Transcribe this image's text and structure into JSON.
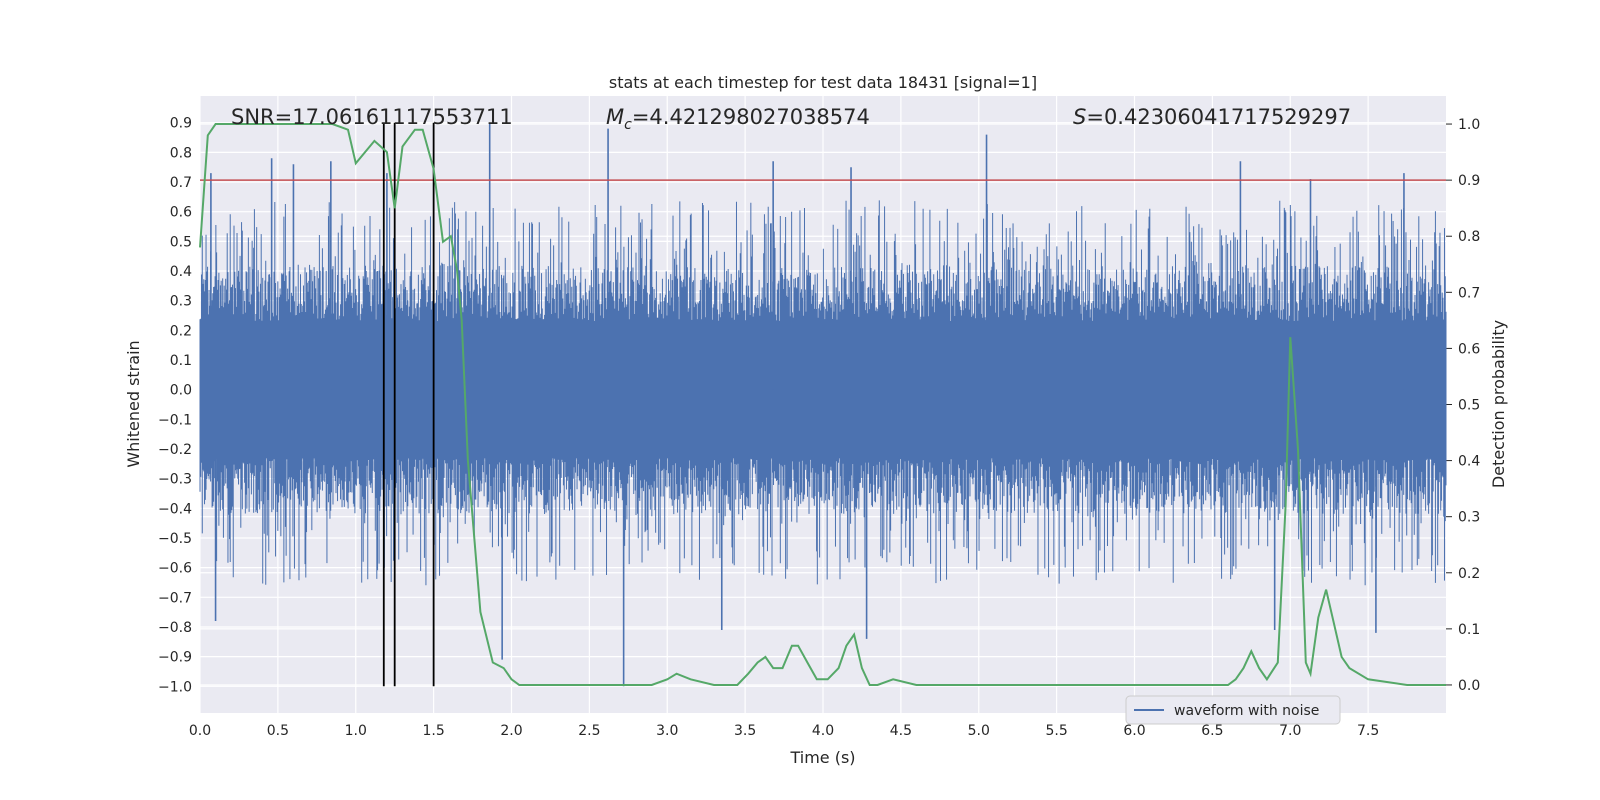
{
  "chart_data": {
    "type": "line",
    "title": "stats at each timestep for test data 18431 [signal=1]",
    "xlabel": "Time (s)",
    "ylabel_left": "Whitened strain",
    "ylabel_right": "Detection probability",
    "xlim": [
      0.0,
      8.0
    ],
    "ylim_left": [
      -1.09,
      0.99
    ],
    "ylim_right": [
      -0.05,
      1.05
    ],
    "x_ticks": [
      "0.0",
      "0.5",
      "1.0",
      "1.5",
      "2.0",
      "2.5",
      "3.0",
      "3.5",
      "4.0",
      "4.5",
      "5.0",
      "5.5",
      "6.0",
      "6.5",
      "7.0",
      "7.5"
    ],
    "y_left_ticks": [
      "0.9",
      "0.8",
      "0.7",
      "0.6",
      "0.5",
      "0.4",
      "0.3",
      "0.2",
      "0.1",
      "0.0",
      "−0.1",
      "−0.2",
      "−0.3",
      "−0.4",
      "−0.5",
      "−0.6",
      "−0.7",
      "−0.8",
      "−0.9",
      "−1.0"
    ],
    "y_right_ticks": [
      "1.0",
      "0.9",
      "0.8",
      "0.7",
      "0.6",
      "0.5",
      "0.4",
      "0.3",
      "0.2",
      "0.1",
      "0.0"
    ],
    "grid": true,
    "annotations": {
      "snr": "SNR=17.06161117553711",
      "mc_symbol": "M",
      "mc_sub": "c",
      "mc_value": "=4.421298027038574",
      "s_symbol": "S",
      "s_value": "=0.42306041717529297"
    },
    "threshold": {
      "axis": "right",
      "value": 0.9,
      "color": "#c44e52"
    },
    "vertical_markers": [
      1.18,
      1.25,
      1.5
    ],
    "waveform": {
      "name": "waveform with noise",
      "color": "#4c72b0",
      "duration_s": 8.0,
      "body_amplitude": 0.42,
      "spikes": [
        {
          "t": 0.07,
          "v": 0.73
        },
        {
          "t": 0.1,
          "v": -0.78
        },
        {
          "t": 0.46,
          "v": 0.78
        },
        {
          "t": 0.6,
          "v": 0.76
        },
        {
          "t": 0.84,
          "v": 0.77
        },
        {
          "t": 1.2,
          "v": 0.73
        },
        {
          "t": 1.86,
          "v": 0.9
        },
        {
          "t": 1.94,
          "v": -0.91
        },
        {
          "t": 2.62,
          "v": 0.88
        },
        {
          "t": 2.72,
          "v": -1.0
        },
        {
          "t": 3.35,
          "v": -0.81
        },
        {
          "t": 3.68,
          "v": 0.77
        },
        {
          "t": 4.18,
          "v": 0.75
        },
        {
          "t": 4.28,
          "v": -0.84
        },
        {
          "t": 5.05,
          "v": 0.86
        },
        {
          "t": 6.68,
          "v": 0.77
        },
        {
          "t": 6.9,
          "v": -0.81
        },
        {
          "t": 7.13,
          "v": 0.71
        },
        {
          "t": 7.55,
          "v": -0.82
        },
        {
          "t": 7.73,
          "v": 0.73
        }
      ]
    },
    "detection_probability": {
      "color": "#55a868",
      "x": [
        0.0,
        0.05,
        0.1,
        0.2,
        0.3,
        0.5,
        0.7,
        0.85,
        0.95,
        1.0,
        1.12,
        1.2,
        1.25,
        1.3,
        1.38,
        1.43,
        1.5,
        1.56,
        1.61,
        1.65,
        1.68,
        1.72,
        1.8,
        1.88,
        1.95,
        2.0,
        2.05,
        2.1,
        2.25,
        2.5,
        2.75,
        2.9,
        3.0,
        3.06,
        3.15,
        3.3,
        3.45,
        3.52,
        3.58,
        3.63,
        3.68,
        3.74,
        3.8,
        3.84,
        3.9,
        3.96,
        4.03,
        4.1,
        4.15,
        4.2,
        4.25,
        4.3,
        4.35,
        4.45,
        4.6,
        5.0,
        5.5,
        6.0,
        6.15,
        6.4,
        6.6,
        6.65,
        6.7,
        6.75,
        6.8,
        6.85,
        6.92,
        6.97,
        7.0,
        7.05,
        7.1,
        7.13,
        7.18,
        7.23,
        7.28,
        7.33,
        7.38,
        7.5,
        7.75,
        8.0
      ],
      "y": [
        0.78,
        0.98,
        1.0,
        1.0,
        1.0,
        1.0,
        1.0,
        1.0,
        0.99,
        0.93,
        0.97,
        0.95,
        0.85,
        0.96,
        0.99,
        0.99,
        0.92,
        0.79,
        0.8,
        0.74,
        0.65,
        0.4,
        0.13,
        0.04,
        0.03,
        0.01,
        0.0,
        0.0,
        0.0,
        0.0,
        0.0,
        0.0,
        0.01,
        0.02,
        0.01,
        0.0,
        0.0,
        0.02,
        0.04,
        0.05,
        0.03,
        0.03,
        0.07,
        0.07,
        0.04,
        0.01,
        0.01,
        0.03,
        0.07,
        0.09,
        0.03,
        0.0,
        0.0,
        0.01,
        0.0,
        0.0,
        0.0,
        0.0,
        0.0,
        0.0,
        0.0,
        0.01,
        0.03,
        0.06,
        0.03,
        0.01,
        0.04,
        0.32,
        0.62,
        0.42,
        0.04,
        0.02,
        0.12,
        0.17,
        0.11,
        0.05,
        0.03,
        0.01,
        0.0,
        0.0
      ]
    },
    "legend": {
      "position": "lower-right",
      "entries": [
        "waveform with noise"
      ]
    }
  }
}
